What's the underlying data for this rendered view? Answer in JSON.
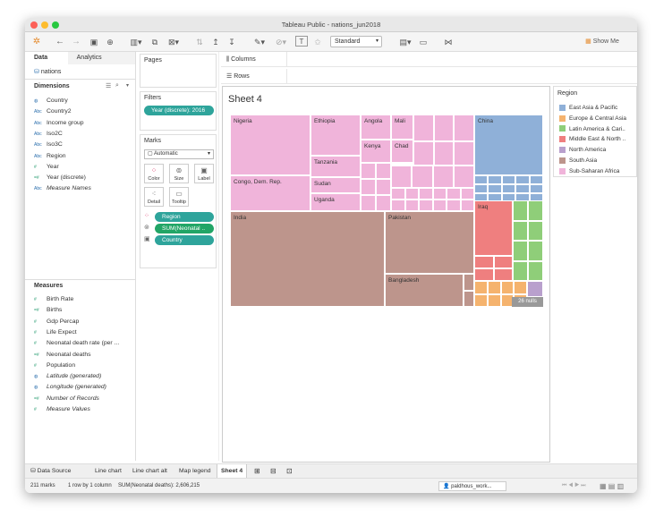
{
  "window": {
    "title": "Tableau Public - nations_jun2018"
  },
  "toolbar": {
    "standard_label": "Standard",
    "show_me_label": "Show Me"
  },
  "left_panel": {
    "tab_data": "Data",
    "tab_analytics": "Analytics",
    "datasource": "nations",
    "dimensions_header": "Dimensions",
    "dimensions": [
      {
        "label": "Country",
        "type": "globe"
      },
      {
        "label": "Country2",
        "type": "Abc"
      },
      {
        "label": "Income group",
        "type": "Abc"
      },
      {
        "label": "Iso2C",
        "type": "Abc"
      },
      {
        "label": "Iso3C",
        "type": "Abc"
      },
      {
        "label": "Region",
        "type": "Abc"
      },
      {
        "label": "Year",
        "type": "#"
      },
      {
        "label": "Year (discrete)",
        "type": "=#"
      },
      {
        "label": "Measure Names",
        "type": "Abc"
      }
    ],
    "measures_header": "Measures",
    "measures": [
      {
        "label": "Birth Rate",
        "type": "#"
      },
      {
        "label": "Births",
        "type": "=#"
      },
      {
        "label": "Gdp Percap",
        "type": "#"
      },
      {
        "label": "Life Expect",
        "type": "#"
      },
      {
        "label": "Neonatal death rate (per ...",
        "type": "#"
      },
      {
        "label": "Neonatal deaths",
        "type": "=#"
      },
      {
        "label": "Population",
        "type": "#"
      },
      {
        "label": "Latitude (generated)",
        "type": "globe"
      },
      {
        "label": "Longitude (generated)",
        "type": "globe"
      },
      {
        "label": "Number of Records",
        "type": "=#"
      },
      {
        "label": "Measure Values",
        "type": "#"
      }
    ]
  },
  "cards": {
    "pages_label": "Pages",
    "filters_label": "Filters",
    "filter_pill": "Year (discrete): 2016",
    "marks_label": "Marks",
    "mark_type": "Automatic",
    "buttons": {
      "color": "Color",
      "size": "Size",
      "label": "Label",
      "detail": "Detail",
      "tooltip": "Tooltip"
    },
    "pill_region": "Region",
    "pill_sum": "SUM(Neonatal ..",
    "pill_country": "Country"
  },
  "shelves": {
    "columns_label": "Columns",
    "rows_label": "Rows"
  },
  "view": {
    "sheet_title": "Sheet 4",
    "cell_labels": {
      "nigeria": "Nigeria",
      "ethiopia": "Ethiopia",
      "angola": "Angola",
      "mali": "Mali",
      "kenya": "Kenya",
      "chad": "Chad",
      "tanzania": "Tanzania",
      "sudan": "Sudan",
      "uganda": "Uganda",
      "congo": "Congo, Dem. Rep.",
      "china": "China",
      "india": "India",
      "pakistan": "Pakistan",
      "bangladesh": "Bangladesh",
      "iraq": "Iraq"
    },
    "nulls_badge": "26 nulls"
  },
  "legend": {
    "title": "Region",
    "items": [
      {
        "label": "East Asia & Pacific",
        "color": "#8fb0d8"
      },
      {
        "label": "Europe & Central Asia",
        "color": "#f5b36e"
      },
      {
        "label": "Latin America & Cari..",
        "color": "#8fce79"
      },
      {
        "label": "Middle East & North ..",
        "color": "#ef7f7f"
      },
      {
        "label": "North America",
        "color": "#b9a0cd"
      },
      {
        "label": "South Asia",
        "color": "#bd958c"
      },
      {
        "label": "Sub-Saharan Africa",
        "color": "#f0b4da"
      }
    ]
  },
  "sheet_tabs": {
    "data_source": "Data Source",
    "tabs": [
      "Line chart",
      "Line chart alt",
      "Map legend",
      "Sheet 4"
    ]
  },
  "status": {
    "marks": "211 marks",
    "rows_cols": "1 row by 1 column",
    "sum": "SUM(Neonatal deaths): 2,606,215",
    "user": "paldhous_work..."
  }
}
